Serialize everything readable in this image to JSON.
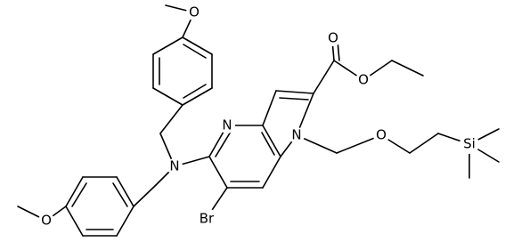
{
  "atoms": {
    "o_top": "O",
    "o_left": "O",
    "n_amine": "N",
    "n_pyridine": "N",
    "n_pyrrole": "N",
    "br": "Br",
    "o_carbonyl": "O",
    "o_ester": "O",
    "o_ether": "O",
    "si": "Si"
  }
}
